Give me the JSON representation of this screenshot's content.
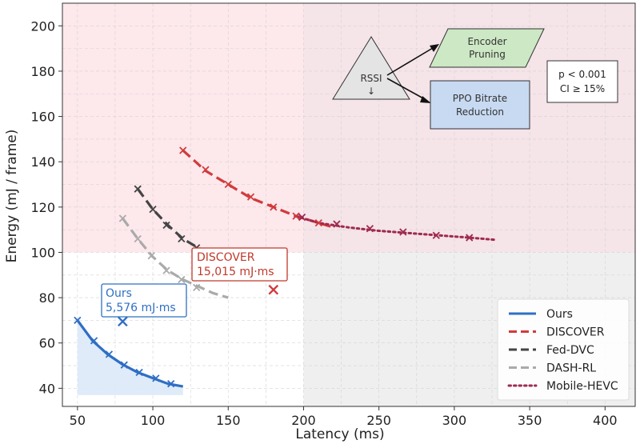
{
  "chart_data": {
    "type": "line",
    "title": "",
    "xlabel": "Latency (ms)",
    "ylabel": "Energy (mJ / frame)",
    "xlim": [
      40,
      420
    ],
    "ylim": [
      32,
      210
    ],
    "xticks": [
      50,
      100,
      150,
      200,
      250,
      300,
      350,
      400
    ],
    "yticks": [
      40,
      60,
      80,
      100,
      120,
      140,
      160,
      180,
      200
    ],
    "grid": true,
    "legend_position": "bottom-right",
    "regions": [
      {
        "x": [
          40,
          200
        ],
        "y": [
          100,
          210
        ],
        "color": "#fde8ec"
      },
      {
        "x": [
          200,
          420
        ],
        "y": [
          100,
          210
        ],
        "color": "#f5e4e8"
      },
      {
        "x": [
          200,
          420
        ],
        "y": [
          32,
          100
        ],
        "color": "#efefef"
      }
    ],
    "series": [
      {
        "name": "Ours",
        "color": "#2f6fc4",
        "style": "solid",
        "fill": "#dce9f8",
        "x": [
          50,
          60,
          70,
          80,
          90,
          100,
          110,
          120
        ],
        "y": [
          70,
          61,
          55,
          50.5,
          47,
          44.5,
          42,
          40.8
        ],
        "markers_x": [
          50,
          61,
          71,
          81,
          91,
          102,
          112
        ],
        "markers_y": [
          70,
          61,
          55,
          50.3,
          47,
          44.4,
          42
        ]
      },
      {
        "name": "DISCOVER",
        "color": "#d13b3b",
        "style": "dashed",
        "x": [
          120,
          135,
          150,
          165,
          180,
          195,
          210,
          220
        ],
        "y": [
          145,
          136,
          130,
          124,
          120,
          116,
          113,
          111
        ],
        "markers_x": [
          120,
          135,
          150,
          165,
          180,
          195,
          210
        ],
        "markers_y": [
          145,
          136.5,
          130,
          124.5,
          120,
          116,
          113
        ]
      },
      {
        "name": "Fed-DVC",
        "color": "#444444",
        "style": "dashed",
        "x": [
          90,
          100,
          110,
          120,
          130,
          140
        ],
        "y": [
          128,
          119,
          112,
          106,
          102,
          99
        ],
        "markers_x": [
          90,
          100,
          109,
          119,
          129,
          137
        ],
        "markers_y": [
          128,
          119,
          112,
          106,
          102,
          100
        ]
      },
      {
        "name": "DASH-RL",
        "color": "#aaaaaa",
        "style": "dashed",
        "x": [
          80,
          90,
          100,
          110,
          120,
          130,
          140,
          150
        ],
        "y": [
          115,
          106,
          98,
          92,
          88,
          85,
          82,
          80
        ],
        "markers_x": [
          80,
          90,
          99,
          109,
          119,
          129
        ],
        "markers_y": [
          115,
          106,
          98.5,
          92,
          88,
          84.5
        ]
      },
      {
        "name": "Mobile-HEVC",
        "color": "#9e2a4f",
        "style": "dotted",
        "x": [
          195,
          210,
          230,
          250,
          270,
          290,
          310,
          328
        ],
        "y": [
          116,
          113,
          111,
          109.5,
          108.5,
          107.5,
          106.5,
          105.5
        ],
        "markers_x": [
          199,
          222,
          244,
          266,
          288,
          310
        ],
        "markers_y": [
          115.5,
          112.5,
          110.5,
          109,
          107.5,
          106.5
        ]
      }
    ],
    "highlights": [
      {
        "x": 80,
        "y": 69.5,
        "color": "#2f6fc4"
      },
      {
        "x": 180,
        "y": 83.5,
        "color": "#d13b3b"
      }
    ]
  },
  "callouts": [
    {
      "line1": "Ours",
      "line2": "5,576 mJ·ms",
      "color": "#2f6fc4"
    },
    {
      "line1": "DISCOVER",
      "line2": "15,015 mJ·ms",
      "color": "#c0392b"
    }
  ],
  "diagram": {
    "triangle_label": "RSSI",
    "triangle_sub": "↓",
    "box1": [
      "Encoder",
      "Pruning"
    ],
    "box1_color": "#cde8c4",
    "box2": [
      "PPO Bitrate",
      "Reduction"
    ],
    "box2_color": "#c8daf2"
  },
  "stats": {
    "line1": "p < 0.001",
    "line2": "CI ≥ 15%"
  }
}
